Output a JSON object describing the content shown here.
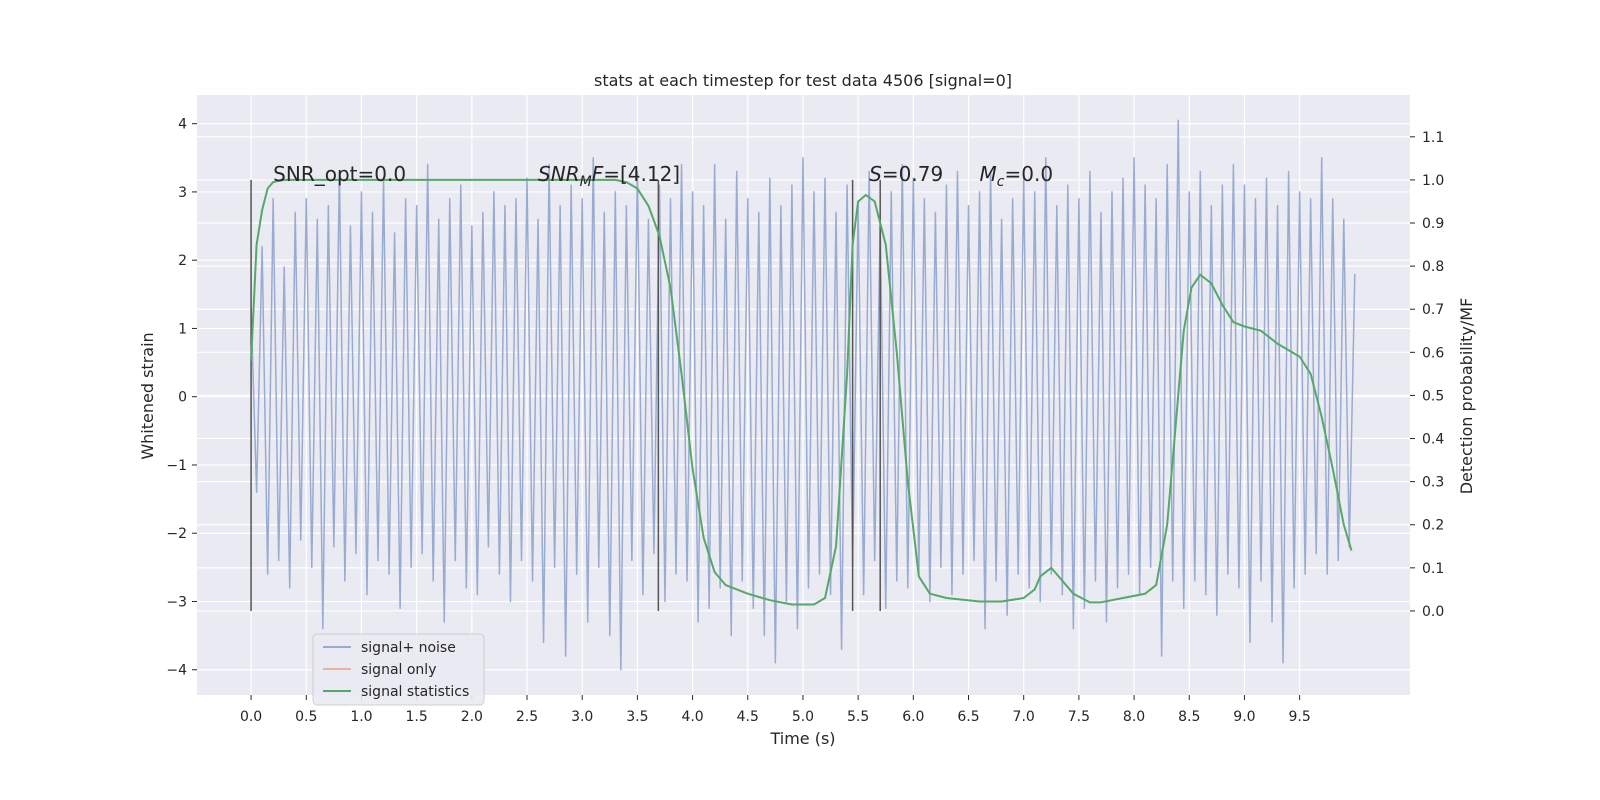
{
  "chart_data": {
    "type": "line",
    "title": "stats at each timestep for test data 4506 [signal=0]",
    "xlabel": "Time (s)",
    "ylabel": "Whitened strain",
    "y2label": "Detection probability/MF",
    "xlim": [
      -0.49,
      10.5
    ],
    "ylim": [
      -4.37,
      4.42
    ],
    "y2lim": [
      -0.195,
      1.197
    ],
    "xticks": [
      {
        "value": 0,
        "label": "0.0"
      },
      {
        "value": 0.5,
        "label": "0.5"
      },
      {
        "value": 1,
        "label": "1.0"
      },
      {
        "value": 1.5,
        "label": "1.5"
      },
      {
        "value": 2,
        "label": "2.0"
      },
      {
        "value": 2.5,
        "label": "2.5"
      },
      {
        "value": 3,
        "label": "3.0"
      },
      {
        "value": 3.5,
        "label": "3.5"
      },
      {
        "value": 4,
        "label": "4.0"
      },
      {
        "value": 4.5,
        "label": "4.5"
      },
      {
        "value": 5,
        "label": "5.0"
      },
      {
        "value": 5.5,
        "label": "5.5"
      },
      {
        "value": 6,
        "label": "6.0"
      },
      {
        "value": 6.5,
        "label": "6.5"
      },
      {
        "value": 7,
        "label": "7.0"
      },
      {
        "value": 7.5,
        "label": "7.5"
      },
      {
        "value": 8,
        "label": "8.0"
      },
      {
        "value": 8.5,
        "label": "8.5"
      },
      {
        "value": 9,
        "label": "9.0"
      },
      {
        "value": 9.5,
        "label": "9.5"
      }
    ],
    "yticks": [
      {
        "value": -4,
        "label": "−4"
      },
      {
        "value": -3,
        "label": "−3"
      },
      {
        "value": -2,
        "label": "−2"
      },
      {
        "value": -1,
        "label": "−1"
      },
      0,
      1,
      2,
      3,
      4
    ],
    "y2ticks": [
      {
        "value": 0,
        "label": "0.0"
      },
      {
        "value": 0.1,
        "label": "0.1"
      },
      {
        "value": 0.2,
        "label": "0.2"
      },
      {
        "value": 0.3,
        "label": "0.3"
      },
      {
        "value": 0.4,
        "label": "0.4"
      },
      {
        "value": 0.5,
        "label": "0.5"
      },
      {
        "value": 0.6,
        "label": "0.6"
      },
      {
        "value": 0.7,
        "label": "0.7"
      },
      {
        "value": 0.8,
        "label": "0.8"
      },
      {
        "value": 0.9,
        "label": "0.9"
      },
      {
        "value": 1.0,
        "label": "1.0"
      },
      {
        "value": 1.1,
        "label": "1.1"
      }
    ],
    "grid": true,
    "legend": "lower left",
    "series": [
      {
        "name": "signal+ noise",
        "color": "#9aabd1",
        "axis": "y",
        "x": [
          0,
          0.05,
          0.1,
          0.15,
          0.2,
          0.25,
          0.3,
          0.35,
          0.4,
          0.45,
          0.5,
          0.55,
          0.6,
          0.65,
          0.7,
          0.75,
          0.8,
          0.85,
          0.9,
          0.95,
          1,
          1.05,
          1.1,
          1.15,
          1.2,
          1.25,
          1.3,
          1.35,
          1.4,
          1.45,
          1.5,
          1.55,
          1.6,
          1.65,
          1.7,
          1.75,
          1.8,
          1.85,
          1.9,
          1.95,
          2,
          2.05,
          2.1,
          2.15,
          2.2,
          2.25,
          2.3,
          2.35,
          2.4,
          2.45,
          2.5,
          2.55,
          2.6,
          2.65,
          2.7,
          2.75,
          2.8,
          2.85,
          2.9,
          2.95,
          3,
          3.05,
          3.1,
          3.15,
          3.2,
          3.25,
          3.3,
          3.35,
          3.4,
          3.45,
          3.5,
          3.55,
          3.6,
          3.65,
          3.7,
          3.75,
          3.8,
          3.85,
          3.9,
          3.95,
          4,
          4.05,
          4.1,
          4.15,
          4.2,
          4.25,
          4.3,
          4.35,
          4.4,
          4.45,
          4.5,
          4.55,
          4.6,
          4.65,
          4.7,
          4.75,
          4.8,
          4.85,
          4.9,
          4.95,
          5,
          5.05,
          5.1,
          5.15,
          5.2,
          5.25,
          5.3,
          5.35,
          5.4,
          5.45,
          5.5,
          5.55,
          5.6,
          5.65,
          5.7,
          5.75,
          5.8,
          5.85,
          5.9,
          5.95,
          6,
          6.05,
          6.1,
          6.15,
          6.2,
          6.25,
          6.3,
          6.35,
          6.4,
          6.45,
          6.5,
          6.55,
          6.6,
          6.65,
          6.7,
          6.75,
          6.8,
          6.85,
          6.9,
          6.95,
          7,
          7.05,
          7.1,
          7.15,
          7.2,
          7.25,
          7.3,
          7.35,
          7.4,
          7.45,
          7.5,
          7.55,
          7.6,
          7.65,
          7.7,
          7.75,
          7.8,
          7.85,
          7.9,
          7.95,
          8,
          8.05,
          8.1,
          8.15,
          8.2,
          8.25,
          8.3,
          8.35,
          8.4,
          8.45,
          8.5,
          8.55,
          8.6,
          8.65,
          8.7,
          8.75,
          8.8,
          8.85,
          8.9,
          8.95,
          9,
          9.05,
          9.1,
          9.15,
          9.2,
          9.25,
          9.3,
          9.35,
          9.4,
          9.45,
          9.5,
          9.55,
          9.6,
          9.65,
          9.7,
          9.75,
          9.8,
          9.85,
          9.9,
          9.95,
          10
        ],
        "values": [
          1.3,
          -1.4,
          2.2,
          -2.6,
          2.9,
          -2.4,
          1.9,
          -2.8,
          2.7,
          -2.1,
          2.9,
          -2.5,
          2.6,
          -3.4,
          2.8,
          -2.2,
          3.3,
          -2.7,
          2.5,
          -2.3,
          3.0,
          -2.9,
          2.7,
          -2.4,
          3.2,
          -2.6,
          2.4,
          -3.1,
          2.9,
          -2.5,
          2.8,
          -2.3,
          3.4,
          -2.7,
          2.6,
          -3.3,
          2.9,
          -2.4,
          3.1,
          -2.8,
          2.5,
          -2.9,
          2.7,
          -2.2,
          3.0,
          -2.6,
          2.8,
          -3.0,
          2.9,
          -2.4,
          3.2,
          -2.7,
          2.6,
          -3.6,
          3.4,
          -2.5,
          2.8,
          -3.8,
          3.1,
          -2.6,
          2.9,
          -3.3,
          3.5,
          -2.5,
          2.7,
          -3.5,
          3.0,
          -4.0,
          2.8,
          -2.4,
          3.3,
          -2.9,
          2.6,
          -2.3,
          3.1,
          -3.0,
          2.9,
          -2.6,
          3.4,
          -2.7,
          3.0,
          -3.3,
          2.8,
          -3.1,
          3.4,
          -2.8,
          2.6,
          -3.5,
          3.3,
          -2.7,
          2.9,
          -3.1,
          2.7,
          -3.5,
          3.2,
          -3.9,
          2.8,
          -3.0,
          3.1,
          -3.4,
          3.5,
          -2.8,
          3.0,
          -2.6,
          3.2,
          -2.9,
          2.7,
          -3.7,
          3.1,
          -2.5,
          2.8,
          -2.9,
          3.3,
          -2.4,
          2.6,
          -3.1,
          3.0,
          -2.7,
          3.4,
          -2.8,
          3.2,
          -2.6,
          2.9,
          -3.0,
          2.7,
          -2.5,
          3.1,
          -2.9,
          3.3,
          -2.6,
          2.8,
          -2.4,
          3.0,
          -3.4,
          3.3,
          -2.7,
          2.6,
          -3.2,
          2.9,
          -2.6,
          3.2,
          -2.8,
          3.0,
          -3.0,
          3.5,
          -2.6,
          2.8,
          -2.9,
          3.1,
          -3.4,
          2.9,
          -3.1,
          3.3,
          -2.7,
          2.7,
          -3.3,
          3.0,
          -2.8,
          3.2,
          -2.6,
          3.5,
          -2.9,
          3.1,
          -2.5,
          2.9,
          -3.8,
          3.4,
          -2.7,
          4.05,
          -3.1,
          3.0,
          -2.7,
          3.3,
          -2.9,
          2.8,
          -3.2,
          3.1,
          -2.6,
          3.4,
          -2.8,
          3.1,
          -3.6,
          2.9,
          -2.7,
          3.2,
          -3.3,
          2.8,
          -3.9,
          3.3,
          -2.8,
          3.0,
          -2.6,
          2.9,
          -2.3,
          3.5,
          -2.6,
          2.9,
          -2.4,
          2.6,
          -2.2,
          1.8
        ]
      },
      {
        "name": "signal only",
        "color": "#e8b59c",
        "axis": "y"
      },
      {
        "name": "signal statistics",
        "color": "#55a868",
        "axis": "y2",
        "x": [
          0,
          0.05,
          0.1,
          0.15,
          0.2,
          0.3,
          3.3,
          3.4,
          3.5,
          3.6,
          3.7,
          3.8,
          3.9,
          4.0,
          4.1,
          4.2,
          4.3,
          4.5,
          4.7,
          4.9,
          5.1,
          5.2,
          5.3,
          5.4,
          5.45,
          5.5,
          5.57,
          5.65,
          5.75,
          5.85,
          5.95,
          6.05,
          6.15,
          6.3,
          6.6,
          6.8,
          7.0,
          7.1,
          7.15,
          7.25,
          7.35,
          7.45,
          7.6,
          7.7,
          7.9,
          8.1,
          8.2,
          8.3,
          8.4,
          8.45,
          8.52,
          8.6,
          8.7,
          8.8,
          8.9,
          9.0,
          9.15,
          9.3,
          9.5,
          9.6,
          9.7,
          9.8,
          9.9,
          9.97
        ],
        "values": [
          0.58,
          0.85,
          0.93,
          0.98,
          0.995,
          1.0,
          1.0,
          0.995,
          0.98,
          0.94,
          0.87,
          0.75,
          0.55,
          0.33,
          0.17,
          0.09,
          0.06,
          0.04,
          0.025,
          0.015,
          0.015,
          0.03,
          0.15,
          0.55,
          0.85,
          0.95,
          0.965,
          0.95,
          0.85,
          0.6,
          0.3,
          0.08,
          0.04,
          0.03,
          0.022,
          0.022,
          0.03,
          0.05,
          0.08,
          0.1,
          0.07,
          0.04,
          0.02,
          0.02,
          0.03,
          0.04,
          0.06,
          0.2,
          0.5,
          0.65,
          0.75,
          0.78,
          0.76,
          0.71,
          0.67,
          0.66,
          0.65,
          0.62,
          0.59,
          0.55,
          0.45,
          0.33,
          0.2,
          0.14
        ]
      }
    ],
    "vlines": {
      "x": [
        0,
        3.69,
        5.45,
        5.7
      ],
      "ymin": 0,
      "ymax": 1,
      "axis": "y2",
      "color": "#555555"
    },
    "annotations": [
      {
        "x": 0.2,
        "y": 3.16,
        "parts": [
          {
            "text": "SNR_opt=0.0"
          }
        ]
      },
      {
        "x": 2.6,
        "y": 3.16,
        "parts": [
          {
            "text": "SNR",
            "italic": true
          },
          {
            "text": "M",
            "italic": true,
            "sub": true
          },
          {
            "text": "F",
            "italic": true
          },
          {
            "text": "=[4.12]"
          }
        ]
      },
      {
        "x": 5.6,
        "y": 3.16,
        "parts": [
          {
            "text": "S",
            "italic": true
          },
          {
            "text": "=0.79"
          }
        ]
      },
      {
        "x": 6.6,
        "y": 3.16,
        "parts": [
          {
            "text": "M",
            "italic": true
          },
          {
            "text": "c",
            "italic": true,
            "sub": true
          },
          {
            "text": "=0.0"
          }
        ]
      }
    ]
  }
}
